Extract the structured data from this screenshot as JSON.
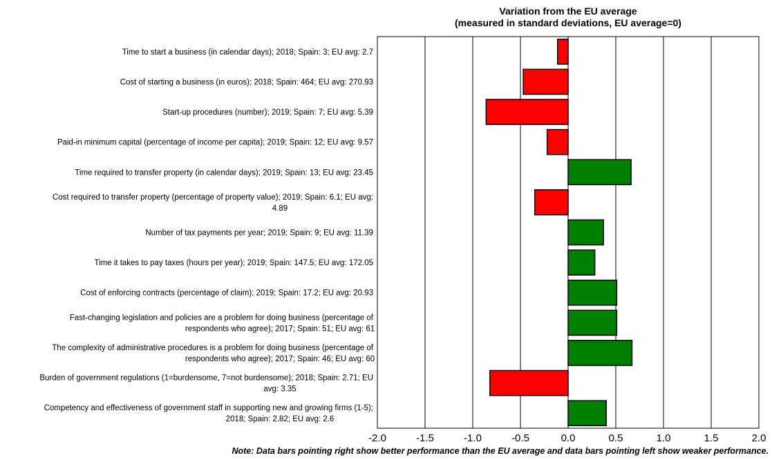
{
  "chart_data": {
    "type": "bar",
    "orientation": "horizontal",
    "title": [
      "Variation from the EU average",
      "(measured in standard deviations, EU average=0)"
    ],
    "categories": [
      [
        "Time to start a business (in calendar days); 2018; Spain: 3; EU avg: 2.7"
      ],
      [
        "Cost of starting a business (in euros); 2018; Spain: 464; EU avg: 270.93"
      ],
      [
        "Start-up procedures (number); 2019; Spain: 7; EU avg: 5.39"
      ],
      [
        "Paid-in minimum capital (percentage of income per capita); 2019; Spain: 12; EU avg: 9.57"
      ],
      [
        "Time required to transfer property (in calendar days); 2019; Spain: 13; EU avg: 23.45"
      ],
      [
        "Cost required to transfer property (percentage of property value); 2019; Spain: 6.1; EU avg:",
        "4.89"
      ],
      [
        "Number of tax payments per year; 2019; Spain: 9; EU avg: 11.39"
      ],
      [
        "Time it takes to pay taxes (hours per year); 2019; Spain: 147.5; EU avg: 172.05"
      ],
      [
        "Cost of enforcing contracts (percentage of claim); 2019; Spain: 17.2; EU avg: 20.93"
      ],
      [
        "Fast-changing legislation and policies are a problem for doing business (percentage of",
        "respondents who agree); 2017; Spain: 51; EU avg: 61"
      ],
      [
        "The complexity of administrative procedures is a problem for doing business (percentage of",
        "respondents who agree); 2017; Spain: 46; EU avg: 60"
      ],
      [
        "Burden of government regulations (1=burdensome, 7=not burdensome); 2018; Spain: 2.71; EU",
        "avg: 3.35"
      ],
      [
        "Competency and effectiveness of government staff in supporting new and growing firms (1-5);",
        "2018; Spain: 2.82; EU avg: 2.6"
      ]
    ],
    "values": [
      -0.11,
      -0.47,
      -0.86,
      -0.22,
      0.66,
      -0.35,
      0.37,
      0.28,
      0.51,
      0.51,
      0.67,
      -0.82,
      0.4
    ],
    "xlim": [
      -2.0,
      2.0
    ],
    "xticks": [
      "-2.0",
      "-1.5",
      "-1.0",
      "-0.5",
      "0.0",
      "0.5",
      "1.0",
      "1.5",
      "2.0"
    ],
    "grid": true,
    "colors": {
      "positive": "#008000",
      "negative": "#ff0000",
      "border": "#000000",
      "grid": "#000000"
    },
    "note": "Note: Data bars pointing right show better performance than the EU average and data bars pointing left show weaker performance."
  }
}
